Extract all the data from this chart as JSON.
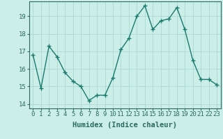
{
  "x": [
    0,
    1,
    2,
    3,
    4,
    5,
    6,
    7,
    8,
    9,
    10,
    11,
    12,
    13,
    14,
    15,
    16,
    17,
    18,
    19,
    20,
    21,
    22,
    23
  ],
  "y": [
    16.8,
    14.9,
    17.3,
    16.7,
    15.8,
    15.3,
    15.0,
    14.2,
    14.5,
    14.5,
    15.5,
    17.1,
    17.75,
    19.0,
    19.6,
    18.25,
    18.75,
    18.85,
    19.5,
    18.25,
    16.5,
    15.4,
    15.4,
    15.1
  ],
  "line_color": "#1a7a6e",
  "marker": "+",
  "bg_color": "#cceee8",
  "grid_color": "#aad8d2",
  "xlabel": "Humidex (Indice chaleur)",
  "ylim": [
    13.75,
    19.85
  ],
  "xlim": [
    -0.5,
    23.5
  ],
  "yticks": [
    14,
    15,
    16,
    17,
    18,
    19
  ],
  "xticks": [
    0,
    1,
    2,
    3,
    4,
    5,
    6,
    7,
    8,
    9,
    10,
    11,
    12,
    13,
    14,
    15,
    16,
    17,
    18,
    19,
    20,
    21,
    22,
    23
  ],
  "xlabel_fontsize": 7.5,
  "tick_fontsize": 6.5,
  "axis_color": "#2a6a60"
}
